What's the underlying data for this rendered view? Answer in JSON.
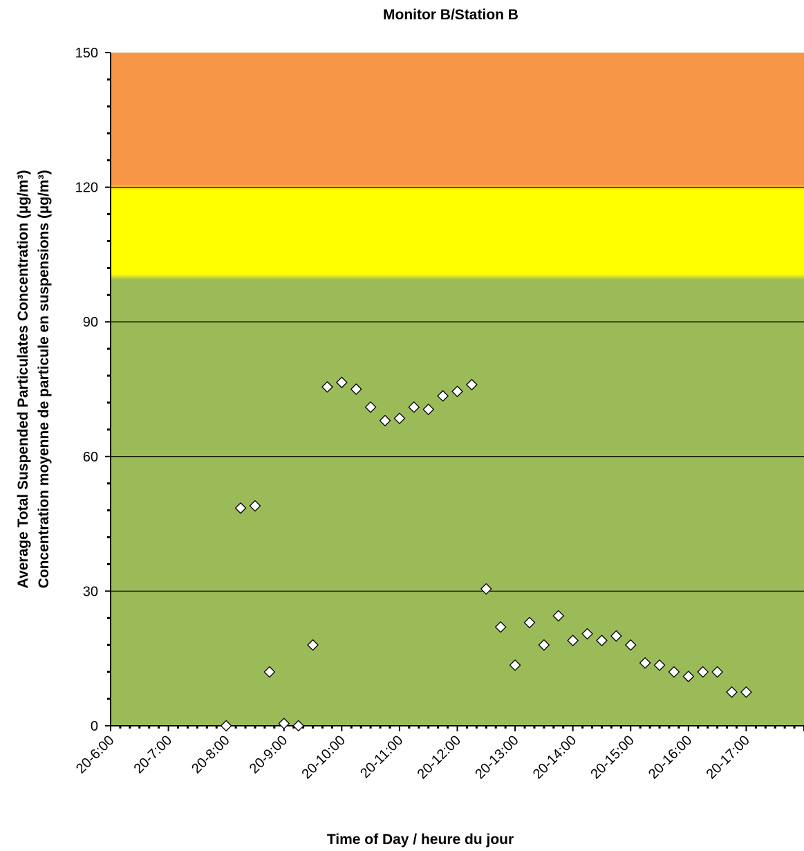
{
  "chart_data": {
    "type": "scatter",
    "title": "Monitor B/Station B",
    "xlabel": "Time of Day / heure du jour",
    "ylabel_line1": "Average Total Suspended Particulates Concentration (µg/m³)",
    "ylabel_line2": "Concentration moyenne de particule en suspensions (µg/m³)",
    "ylim": [
      0,
      150
    ],
    "yticks": [
      0,
      30,
      60,
      90,
      120,
      150
    ],
    "xlim": [
      6,
      18
    ],
    "xticks": [
      {
        "x": 6,
        "label": "20-6:00"
      },
      {
        "x": 7,
        "label": "20-7:00"
      },
      {
        "x": 8,
        "label": "20-8:00"
      },
      {
        "x": 9,
        "label": "20-9:00"
      },
      {
        "x": 10,
        "label": "20-10:00"
      },
      {
        "x": 11,
        "label": "20-11:00"
      },
      {
        "x": 12,
        "label": "20-12:00"
      },
      {
        "x": 13,
        "label": "20-13:00"
      },
      {
        "x": 14,
        "label": "20-14:00"
      },
      {
        "x": 15,
        "label": "20-15:00"
      },
      {
        "x": 16,
        "label": "20-16:00"
      },
      {
        "x": 17,
        "label": "20-17:00"
      }
    ],
    "grid": true,
    "bands": [
      {
        "from": 0,
        "to": 100,
        "color": "#9BBB59"
      },
      {
        "from": 100,
        "to": 120,
        "color": "#FFFF00"
      },
      {
        "from": 120,
        "to": 150,
        "color": "#F79646"
      }
    ],
    "marker_color": "#ffffff",
    "series": [
      {
        "points": [
          {
            "x": 8.0,
            "y": 0.0
          },
          {
            "x": 8.25,
            "y": 48.5
          },
          {
            "x": 8.5,
            "y": 49.0
          },
          {
            "x": 8.75,
            "y": 12.0
          },
          {
            "x": 9.0,
            "y": 0.5
          },
          {
            "x": 9.25,
            "y": 0.0
          },
          {
            "x": 9.5,
            "y": 18.0
          },
          {
            "x": 9.75,
            "y": 75.5
          },
          {
            "x": 10.0,
            "y": 76.5
          },
          {
            "x": 10.25,
            "y": 75.0
          },
          {
            "x": 10.5,
            "y": 71.0
          },
          {
            "x": 10.75,
            "y": 68.0
          },
          {
            "x": 11.0,
            "y": 68.5
          },
          {
            "x": 11.25,
            "y": 71.0
          },
          {
            "x": 11.5,
            "y": 70.5
          },
          {
            "x": 11.75,
            "y": 73.5
          },
          {
            "x": 12.0,
            "y": 74.5
          },
          {
            "x": 12.25,
            "y": 76.0
          },
          {
            "x": 12.5,
            "y": 30.5
          },
          {
            "x": 12.75,
            "y": 22.0
          },
          {
            "x": 13.0,
            "y": 13.5
          },
          {
            "x": 13.25,
            "y": 23.0
          },
          {
            "x": 13.5,
            "y": 18.0
          },
          {
            "x": 13.75,
            "y": 24.5
          },
          {
            "x": 14.0,
            "y": 19.0
          },
          {
            "x": 14.25,
            "y": 20.5
          },
          {
            "x": 14.5,
            "y": 19.0
          },
          {
            "x": 14.75,
            "y": 20.0
          },
          {
            "x": 15.0,
            "y": 18.0
          },
          {
            "x": 15.25,
            "y": 14.0
          },
          {
            "x": 15.5,
            "y": 13.5
          },
          {
            "x": 15.75,
            "y": 12.0
          },
          {
            "x": 16.0,
            "y": 11.0
          },
          {
            "x": 16.25,
            "y": 12.0
          },
          {
            "x": 16.5,
            "y": 12.0
          },
          {
            "x": 16.75,
            "y": 7.5
          },
          {
            "x": 17.0,
            "y": 7.5
          }
        ]
      }
    ]
  }
}
